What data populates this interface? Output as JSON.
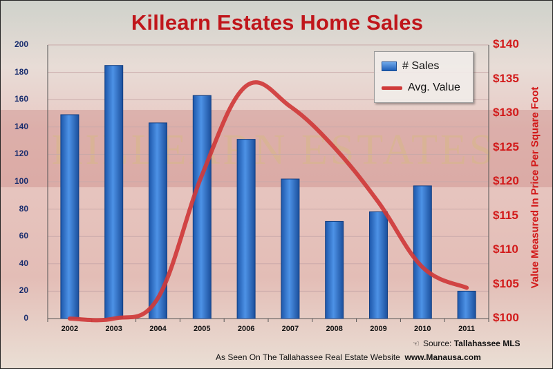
{
  "chart_data": {
    "type": "bar",
    "title": "Killearn Estates Home Sales",
    "categories": [
      "2002",
      "2003",
      "2004",
      "2005",
      "2006",
      "2007",
      "2008",
      "2009",
      "2010",
      "2011"
    ],
    "series": [
      {
        "name": "# Sales",
        "type": "bar",
        "axis": "left",
        "color": "#2f72cf",
        "values": [
          149,
          185,
          143,
          163,
          131,
          102,
          71,
          78,
          97,
          20
        ]
      },
      {
        "name": "Avg. Value",
        "type": "line",
        "axis": "right",
        "color": "#cf3a3a",
        "values": [
          100,
          100,
          103,
          121,
          134,
          131,
          125,
          117,
          107.5,
          104.5
        ]
      }
    ],
    "y_left": {
      "range": [
        0,
        200
      ],
      "ticks": [
        "0",
        "20",
        "40",
        "60",
        "80",
        "100",
        "120",
        "140",
        "160",
        "180",
        "200"
      ]
    },
    "y_right": {
      "range": [
        100,
        140
      ],
      "label": "Value Measured In Price Per Square Foot",
      "ticks": [
        "$100",
        "$105",
        "$110",
        "$115",
        "$120",
        "$125",
        "$130",
        "$135",
        "$140"
      ]
    },
    "grid": "horizontal",
    "legend_placement": "top-right"
  },
  "footer": {
    "source_prefix": "Source:",
    "source_name": "Tallahassee MLS",
    "site_text": "As Seen On The Tallahassee Real Estate Website",
    "site_url": "www.Manausa.com"
  },
  "colors": {
    "title": "#c0161b",
    "left_axis_text": "#1a2e6e",
    "right_axis_text": "#d21a1a",
    "grid": "#c9a9a9"
  }
}
